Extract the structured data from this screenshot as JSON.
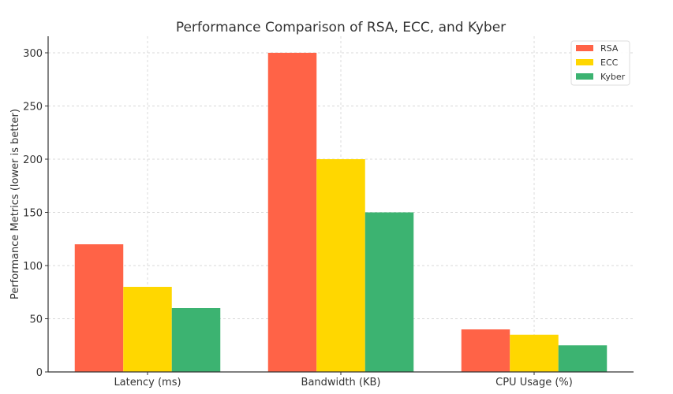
{
  "chart_data": {
    "type": "bar",
    "title": "Performance Comparison of RSA, ECC, and Kyber",
    "xlabel": "",
    "ylabel": "Performance Metrics (lower is better)",
    "categories": [
      "Latency (ms)",
      "Bandwidth (KB)",
      "CPU Usage (%)"
    ],
    "series": [
      {
        "name": "RSA",
        "color": "#ff6347",
        "values": [
          120,
          300,
          40
        ]
      },
      {
        "name": "ECC",
        "color": "#ffd700",
        "values": [
          80,
          200,
          35
        ]
      },
      {
        "name": "Kyber",
        "color": "#3cb371",
        "values": [
          60,
          150,
          25
        ]
      }
    ],
    "ylim": [
      0,
      315
    ],
    "yticks": [
      0,
      50,
      100,
      150,
      200,
      250,
      300
    ],
    "grid": true,
    "legend_position": "upper right"
  }
}
